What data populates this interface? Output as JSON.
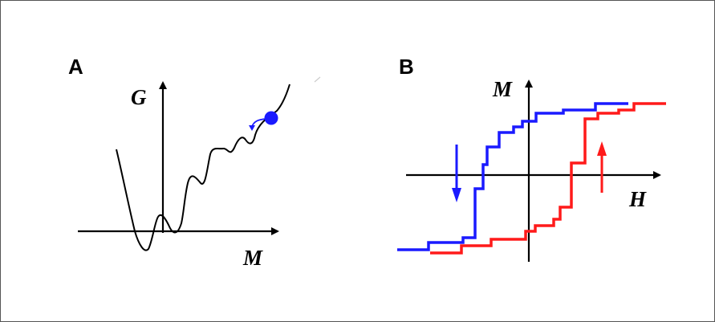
{
  "panels": [
    {
      "label": "A",
      "x_axis_label": "M",
      "y_axis_label": "G"
    },
    {
      "label": "B",
      "x_axis_label": "H",
      "y_axis_label": "M"
    }
  ],
  "colors": {
    "background": "#ffffff",
    "frame": "#555555",
    "axis": "#000000",
    "energy_curve": "#000000",
    "ball": "#1a1aff",
    "descending_branch": "#1a1aff",
    "ascending_branch": "#ff1a1a",
    "down_arrow": "#1a1aff",
    "up_arrow": "#ff1a1a"
  },
  "icons": {
    "ball": "ball-icon",
    "down_arrow": "arrow-down-icon",
    "up_arrow": "arrow-up-icon"
  }
}
